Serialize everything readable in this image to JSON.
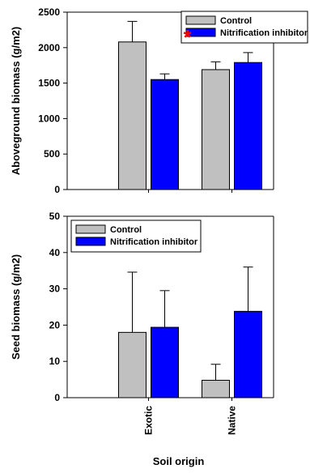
{
  "colors": {
    "control": "#c0c0c0",
    "inhibitor": "#0000ff",
    "significance": "#ff0000"
  },
  "chart_data": [
    {
      "type": "bar",
      "ylabel": "Aboveground biomass (g/m2)",
      "xlabel": "",
      "categories": [
        "Exotic",
        "Native"
      ],
      "ylim": [
        0,
        2500
      ],
      "yticks": [
        0,
        500,
        1000,
        1500,
        2000,
        2500
      ],
      "show_x_tick_labels": false,
      "grid": false,
      "legend_position": "top-right",
      "series": [
        {
          "name": "Control",
          "color_key": "control",
          "values": [
            2080,
            1690
          ],
          "errors": [
            290,
            110
          ]
        },
        {
          "name": "Nitrification inhibitor",
          "color_key": "inhibitor",
          "values": [
            1550,
            1790
          ],
          "errors": [
            80,
            140
          ]
        }
      ],
      "annotations": [
        {
          "text": "*",
          "category": "Exotic",
          "color_key": "significance"
        }
      ]
    },
    {
      "type": "bar",
      "ylabel": "Seed biomass (g/m2)",
      "xlabel": "Soil origin",
      "categories": [
        "Exotic",
        "Native"
      ],
      "ylim": [
        0,
        50
      ],
      "yticks": [
        0,
        10,
        20,
        30,
        40,
        50
      ],
      "show_x_tick_labels": true,
      "grid": false,
      "legend_position": "top-left",
      "series": [
        {
          "name": "Control",
          "color_key": "control",
          "values": [
            18.0,
            4.8
          ],
          "errors": [
            16.6,
            4.4
          ]
        },
        {
          "name": "Nitrification inhibitor",
          "color_key": "inhibitor",
          "values": [
            19.4,
            23.8
          ],
          "errors": [
            10.1,
            12.2
          ]
        }
      ],
      "annotations": []
    }
  ]
}
